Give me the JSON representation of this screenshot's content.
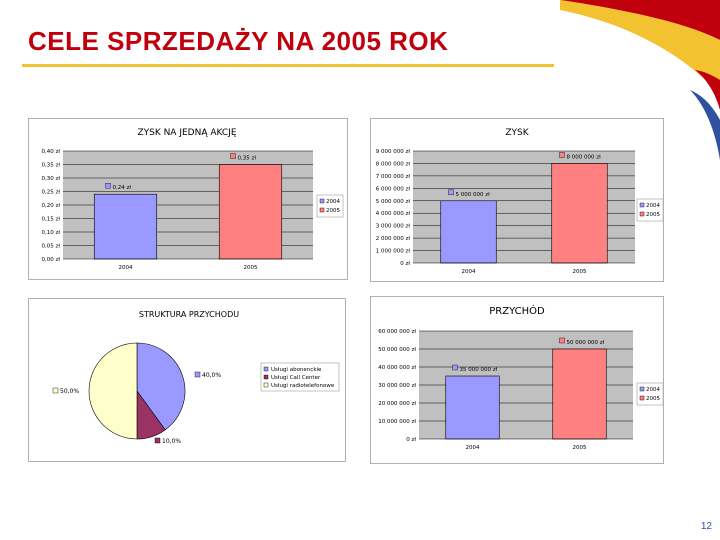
{
  "slide": {
    "title": "CELE SPRZEDAŻY NA 2005 ROK",
    "page_number": "12"
  },
  "colors": {
    "title_red": "#c0000c",
    "rule_yellow": "#f2c230",
    "bar_2004": "#9999ff",
    "bar_2005": "#ff8080",
    "plot_bg": "#c0c0c0",
    "pie_abonenckie": "#9999ff",
    "pie_callcenter": "#993366",
    "pie_radio": "#ffffcc"
  },
  "chart_data": [
    {
      "id": "eps",
      "type": "bar",
      "title": "ZYSK NA JEDNĄ AKCJĘ",
      "categories": [
        "2004",
        "2005"
      ],
      "series": [
        {
          "name": "2004",
          "values": [
            0.24,
            null
          ]
        },
        {
          "name": "2005",
          "values": [
            null,
            0.35
          ]
        }
      ],
      "data_labels": [
        "0,24 zł",
        "0,35 zł"
      ],
      "yticks": [
        "0,00 zł",
        "0,05 zł",
        "0,10 zł",
        "0,15 zł",
        "0,20 zł",
        "0,25 zł",
        "0,30 zł",
        "0,35 zł",
        "0,40 zł"
      ],
      "ylim": [
        0,
        0.4
      ],
      "legend": [
        "2004",
        "2005"
      ],
      "legend_position": "right",
      "grid": true
    },
    {
      "id": "profit",
      "type": "bar",
      "title": "ZYSK",
      "categories": [
        "2004",
        "2005"
      ],
      "series": [
        {
          "name": "2004",
          "values": [
            5000000,
            null
          ]
        },
        {
          "name": "2005",
          "values": [
            null,
            8000000
          ]
        }
      ],
      "data_labels": [
        "5 000 000 zł",
        "8 000 000 zł"
      ],
      "yticks": [
        "0 zł",
        "1 000 000 zł",
        "2 000 000 zł",
        "3 000 000 zł",
        "4 000 000 zł",
        "5 000 000 zł",
        "6 000 000 zł",
        "7 000 000 zł",
        "8 000 000 zł",
        "9 000 000 zł"
      ],
      "ylim": [
        0,
        9000000
      ],
      "legend": [
        "2004",
        "2005"
      ],
      "legend_position": "right",
      "grid": true
    },
    {
      "id": "revenue_structure",
      "type": "pie",
      "title": "STRUKTURA PRZYCHODU",
      "slices": [
        {
          "name": "Usługi abonenckie",
          "value": 40.0,
          "label": "40,0%"
        },
        {
          "name": "Usługi Call Center",
          "value": 10.0,
          "label": "10,0%"
        },
        {
          "name": "Usługi radiotelefonowe",
          "value": 50.0,
          "label": "50,0%"
        }
      ],
      "legend_position": "right"
    },
    {
      "id": "revenue",
      "type": "bar",
      "title": "PRZYCHÓD",
      "categories": [
        "2004",
        "2005"
      ],
      "series": [
        {
          "name": "2004",
          "values": [
            35000000,
            null
          ]
        },
        {
          "name": "2005",
          "values": [
            null,
            50000000
          ]
        }
      ],
      "data_labels": [
        "35 000 000 zł",
        "50 000 000 zł"
      ],
      "yticks": [
        "0 zł",
        "10 000 000 zł",
        "20 000 000 zł",
        "30 000 000 zł",
        "40 000 000 zł",
        "50 000 000 zł",
        "60 000 000 zł"
      ],
      "ylim": [
        0,
        60000000
      ],
      "legend": [
        "2004",
        "2005"
      ],
      "legend_position": "right",
      "grid": true
    }
  ]
}
